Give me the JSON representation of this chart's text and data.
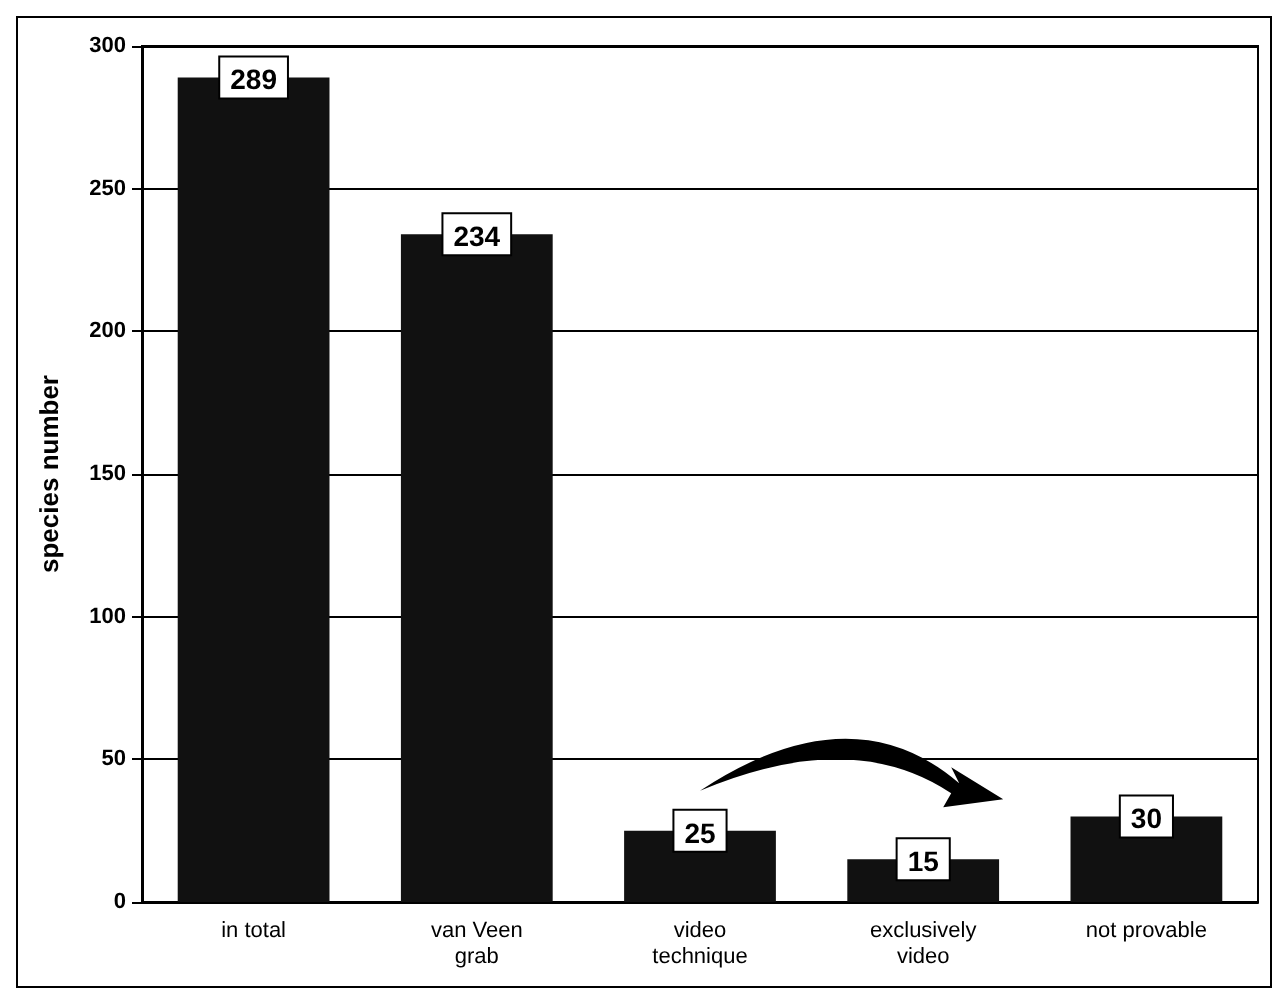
{
  "chart_data": {
    "type": "bar",
    "ylabel": "species number",
    "categories": [
      "in total",
      "van Veen\ngrab",
      "video\ntechnique",
      "exclusively\nvideo",
      "not provable"
    ],
    "values": [
      289,
      234,
      25,
      15,
      30
    ],
    "color": "#111111",
    "ylim": [
      0,
      300
    ],
    "yticks": [
      0,
      50,
      100,
      150,
      200,
      250,
      300
    ],
    "grid": "y",
    "data_labels": true
  }
}
